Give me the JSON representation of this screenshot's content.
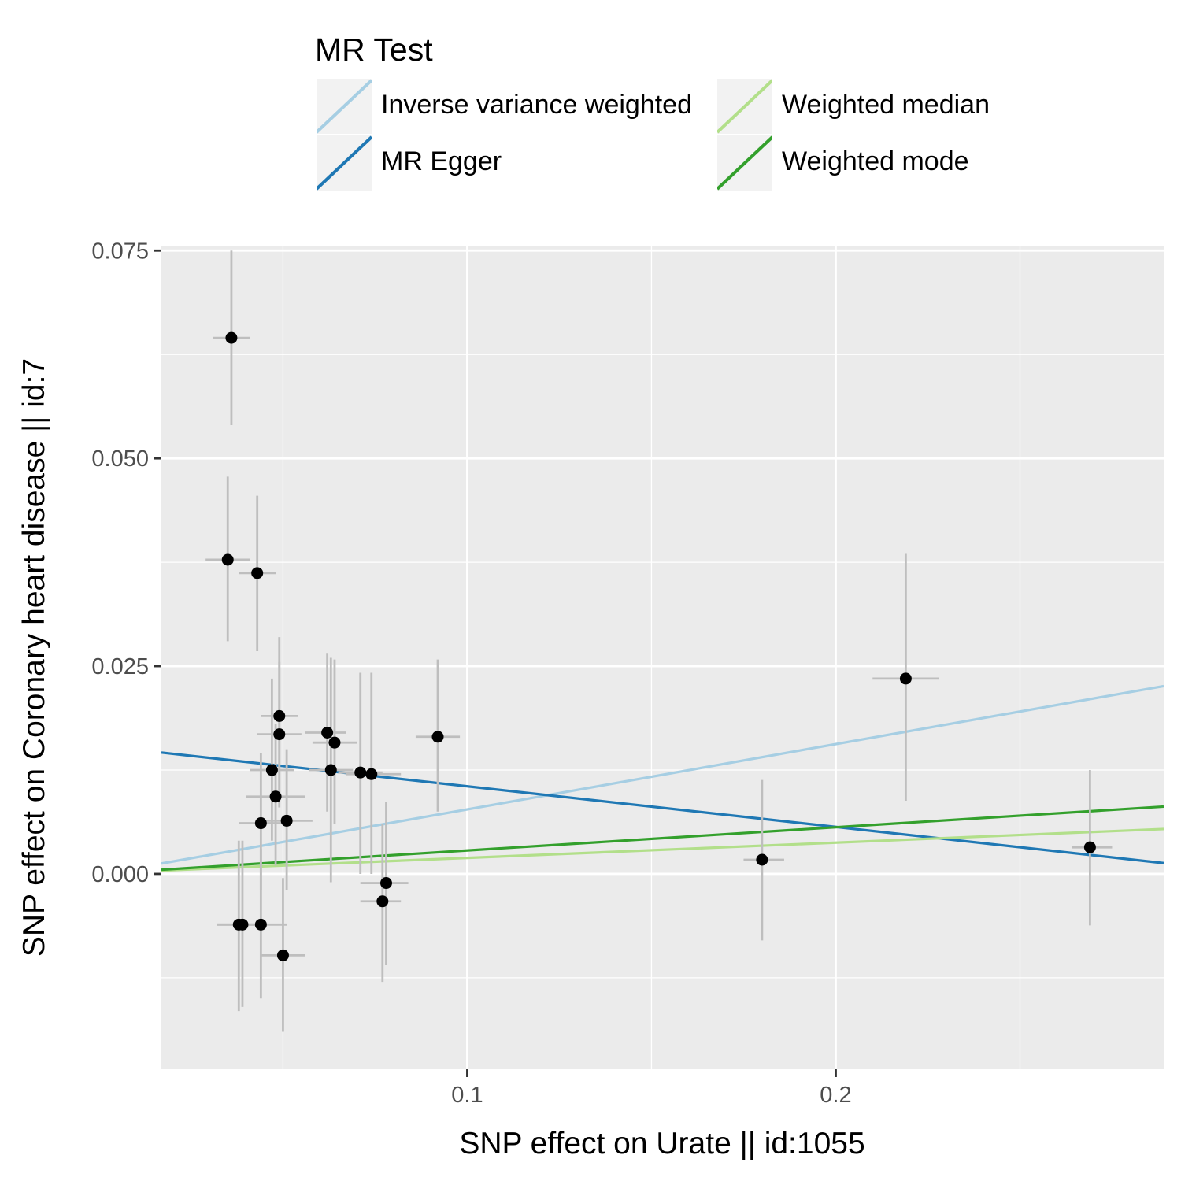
{
  "legend": {
    "title": "MR Test",
    "items": [
      {
        "label": "Inverse variance weighted",
        "color": "#a6cee3"
      },
      {
        "label": "MR Egger",
        "color": "#1f78b4"
      },
      {
        "label": "Weighted median",
        "color": "#b2df8a"
      },
      {
        "label": "Weighted mode",
        "color": "#33a02c"
      }
    ]
  },
  "chart_data": {
    "type": "scatter",
    "xlabel": "SNP effect on Urate || id:1055",
    "ylabel": "SNP effect on Coronary heart disease || id:7",
    "xlim": [
      0.017,
      0.289
    ],
    "ylim": [
      -0.0235,
      0.0755
    ],
    "x_ticks": [
      0.1,
      0.2
    ],
    "x_tick_labels": [
      "0.1",
      "0.2"
    ],
    "y_ticks": [
      0.0,
      0.025,
      0.05,
      0.075
    ],
    "y_tick_labels": [
      "0.000",
      "0.025",
      "0.050",
      "0.075"
    ],
    "grid": true,
    "legend_position": "top",
    "points": [
      {
        "x": 0.036,
        "y": 0.0645,
        "x_lo": 0.031,
        "x_hi": 0.041,
        "y_lo": 0.054,
        "y_hi": 0.075
      },
      {
        "x": 0.035,
        "y": 0.0378,
        "x_lo": 0.029,
        "x_hi": 0.041,
        "y_lo": 0.028,
        "y_hi": 0.0478
      },
      {
        "x": 0.043,
        "y": 0.0362,
        "x_lo": 0.038,
        "x_hi": 0.048,
        "y_lo": 0.0268,
        "y_hi": 0.0455
      },
      {
        "x": 0.049,
        "y": 0.019,
        "x_lo": 0.044,
        "x_hi": 0.054,
        "y_lo": 0.0095,
        "y_hi": 0.0285
      },
      {
        "x": 0.049,
        "y": 0.0168,
        "x_lo": 0.043,
        "x_hi": 0.055,
        "y_lo": 0.008,
        "y_hi": 0.0255
      },
      {
        "x": 0.047,
        "y": 0.0125,
        "x_lo": 0.041,
        "x_hi": 0.053,
        "y_lo": 0.004,
        "y_hi": 0.0235
      },
      {
        "x": 0.048,
        "y": 0.0093,
        "x_lo": 0.04,
        "x_hi": 0.056,
        "y_lo": 0.001,
        "y_hi": 0.018
      },
      {
        "x": 0.044,
        "y": 0.0061,
        "x_lo": 0.038,
        "x_hi": 0.05,
        "y_lo": -0.002,
        "y_hi": 0.0145
      },
      {
        "x": 0.051,
        "y": 0.0064,
        "x_lo": 0.045,
        "x_hi": 0.058,
        "y_lo": -0.002,
        "y_hi": 0.015
      },
      {
        "x": 0.062,
        "y": 0.017,
        "x_lo": 0.056,
        "x_hi": 0.067,
        "y_lo": 0.0075,
        "y_hi": 0.0265
      },
      {
        "x": 0.064,
        "y": 0.0158,
        "x_lo": 0.058,
        "x_hi": 0.07,
        "y_lo": 0.006,
        "y_hi": 0.0258
      },
      {
        "x": 0.063,
        "y": 0.0125,
        "x_lo": 0.057,
        "x_hi": 0.069,
        "y_lo": -0.001,
        "y_hi": 0.026
      },
      {
        "x": 0.071,
        "y": 0.0122,
        "x_lo": 0.065,
        "x_hi": 0.077,
        "y_lo": 0.0,
        "y_hi": 0.0242
      },
      {
        "x": 0.074,
        "y": 0.012,
        "x_lo": 0.067,
        "x_hi": 0.082,
        "y_lo": 0.0,
        "y_hi": 0.0242
      },
      {
        "x": 0.092,
        "y": 0.0165,
        "x_lo": 0.086,
        "x_hi": 0.098,
        "y_lo": 0.0075,
        "y_hi": 0.0258
      },
      {
        "x": 0.078,
        "y": -0.0011,
        "x_lo": 0.071,
        "x_hi": 0.084,
        "y_lo": -0.011,
        "y_hi": 0.0087
      },
      {
        "x": 0.077,
        "y": -0.0033,
        "x_lo": 0.071,
        "x_hi": 0.082,
        "y_lo": -0.013,
        "y_hi": 0.006
      },
      {
        "x": 0.039,
        "y": -0.0061,
        "x_lo": 0.032,
        "x_hi": 0.045,
        "y_lo": -0.016,
        "y_hi": 0.004
      },
      {
        "x": 0.038,
        "y": -0.0061,
        "x_lo": 0.032,
        "x_hi": 0.044,
        "y_lo": -0.0165,
        "y_hi": 0.004
      },
      {
        "x": 0.044,
        "y": -0.0061,
        "x_lo": 0.038,
        "x_hi": 0.051,
        "y_lo": -0.015,
        "y_hi": 0.003
      },
      {
        "x": 0.05,
        "y": -0.0098,
        "x_lo": 0.044,
        "x_hi": 0.056,
        "y_lo": -0.019,
        "y_hi": -0.0005
      },
      {
        "x": 0.18,
        "y": 0.0017,
        "x_lo": 0.175,
        "x_hi": 0.186,
        "y_lo": -0.008,
        "y_hi": 0.0113
      },
      {
        "x": 0.219,
        "y": 0.0235,
        "x_lo": 0.21,
        "x_hi": 0.228,
        "y_lo": 0.0088,
        "y_hi": 0.0385
      },
      {
        "x": 0.269,
        "y": 0.0032,
        "x_lo": 0.264,
        "x_hi": 0.275,
        "y_lo": -0.0062,
        "y_hi": 0.0125
      }
    ],
    "lines": [
      {
        "name": "Inverse variance weighted",
        "color": "#a6cee3",
        "x0": 0.017,
        "y0": 0.00125,
        "x1": 0.289,
        "y1": 0.0226
      },
      {
        "name": "MR Egger",
        "color": "#1f78b4",
        "x0": 0.017,
        "y0": 0.0146,
        "x1": 0.289,
        "y1": 0.0013
      },
      {
        "name": "Weighted median",
        "color": "#b2df8a",
        "x0": 0.017,
        "y0": 0.0004,
        "x1": 0.289,
        "y1": 0.0054
      },
      {
        "name": "Weighted mode",
        "color": "#33a02c",
        "x0": 0.017,
        "y0": 0.0005,
        "x1": 0.289,
        "y1": 0.0081
      }
    ]
  }
}
